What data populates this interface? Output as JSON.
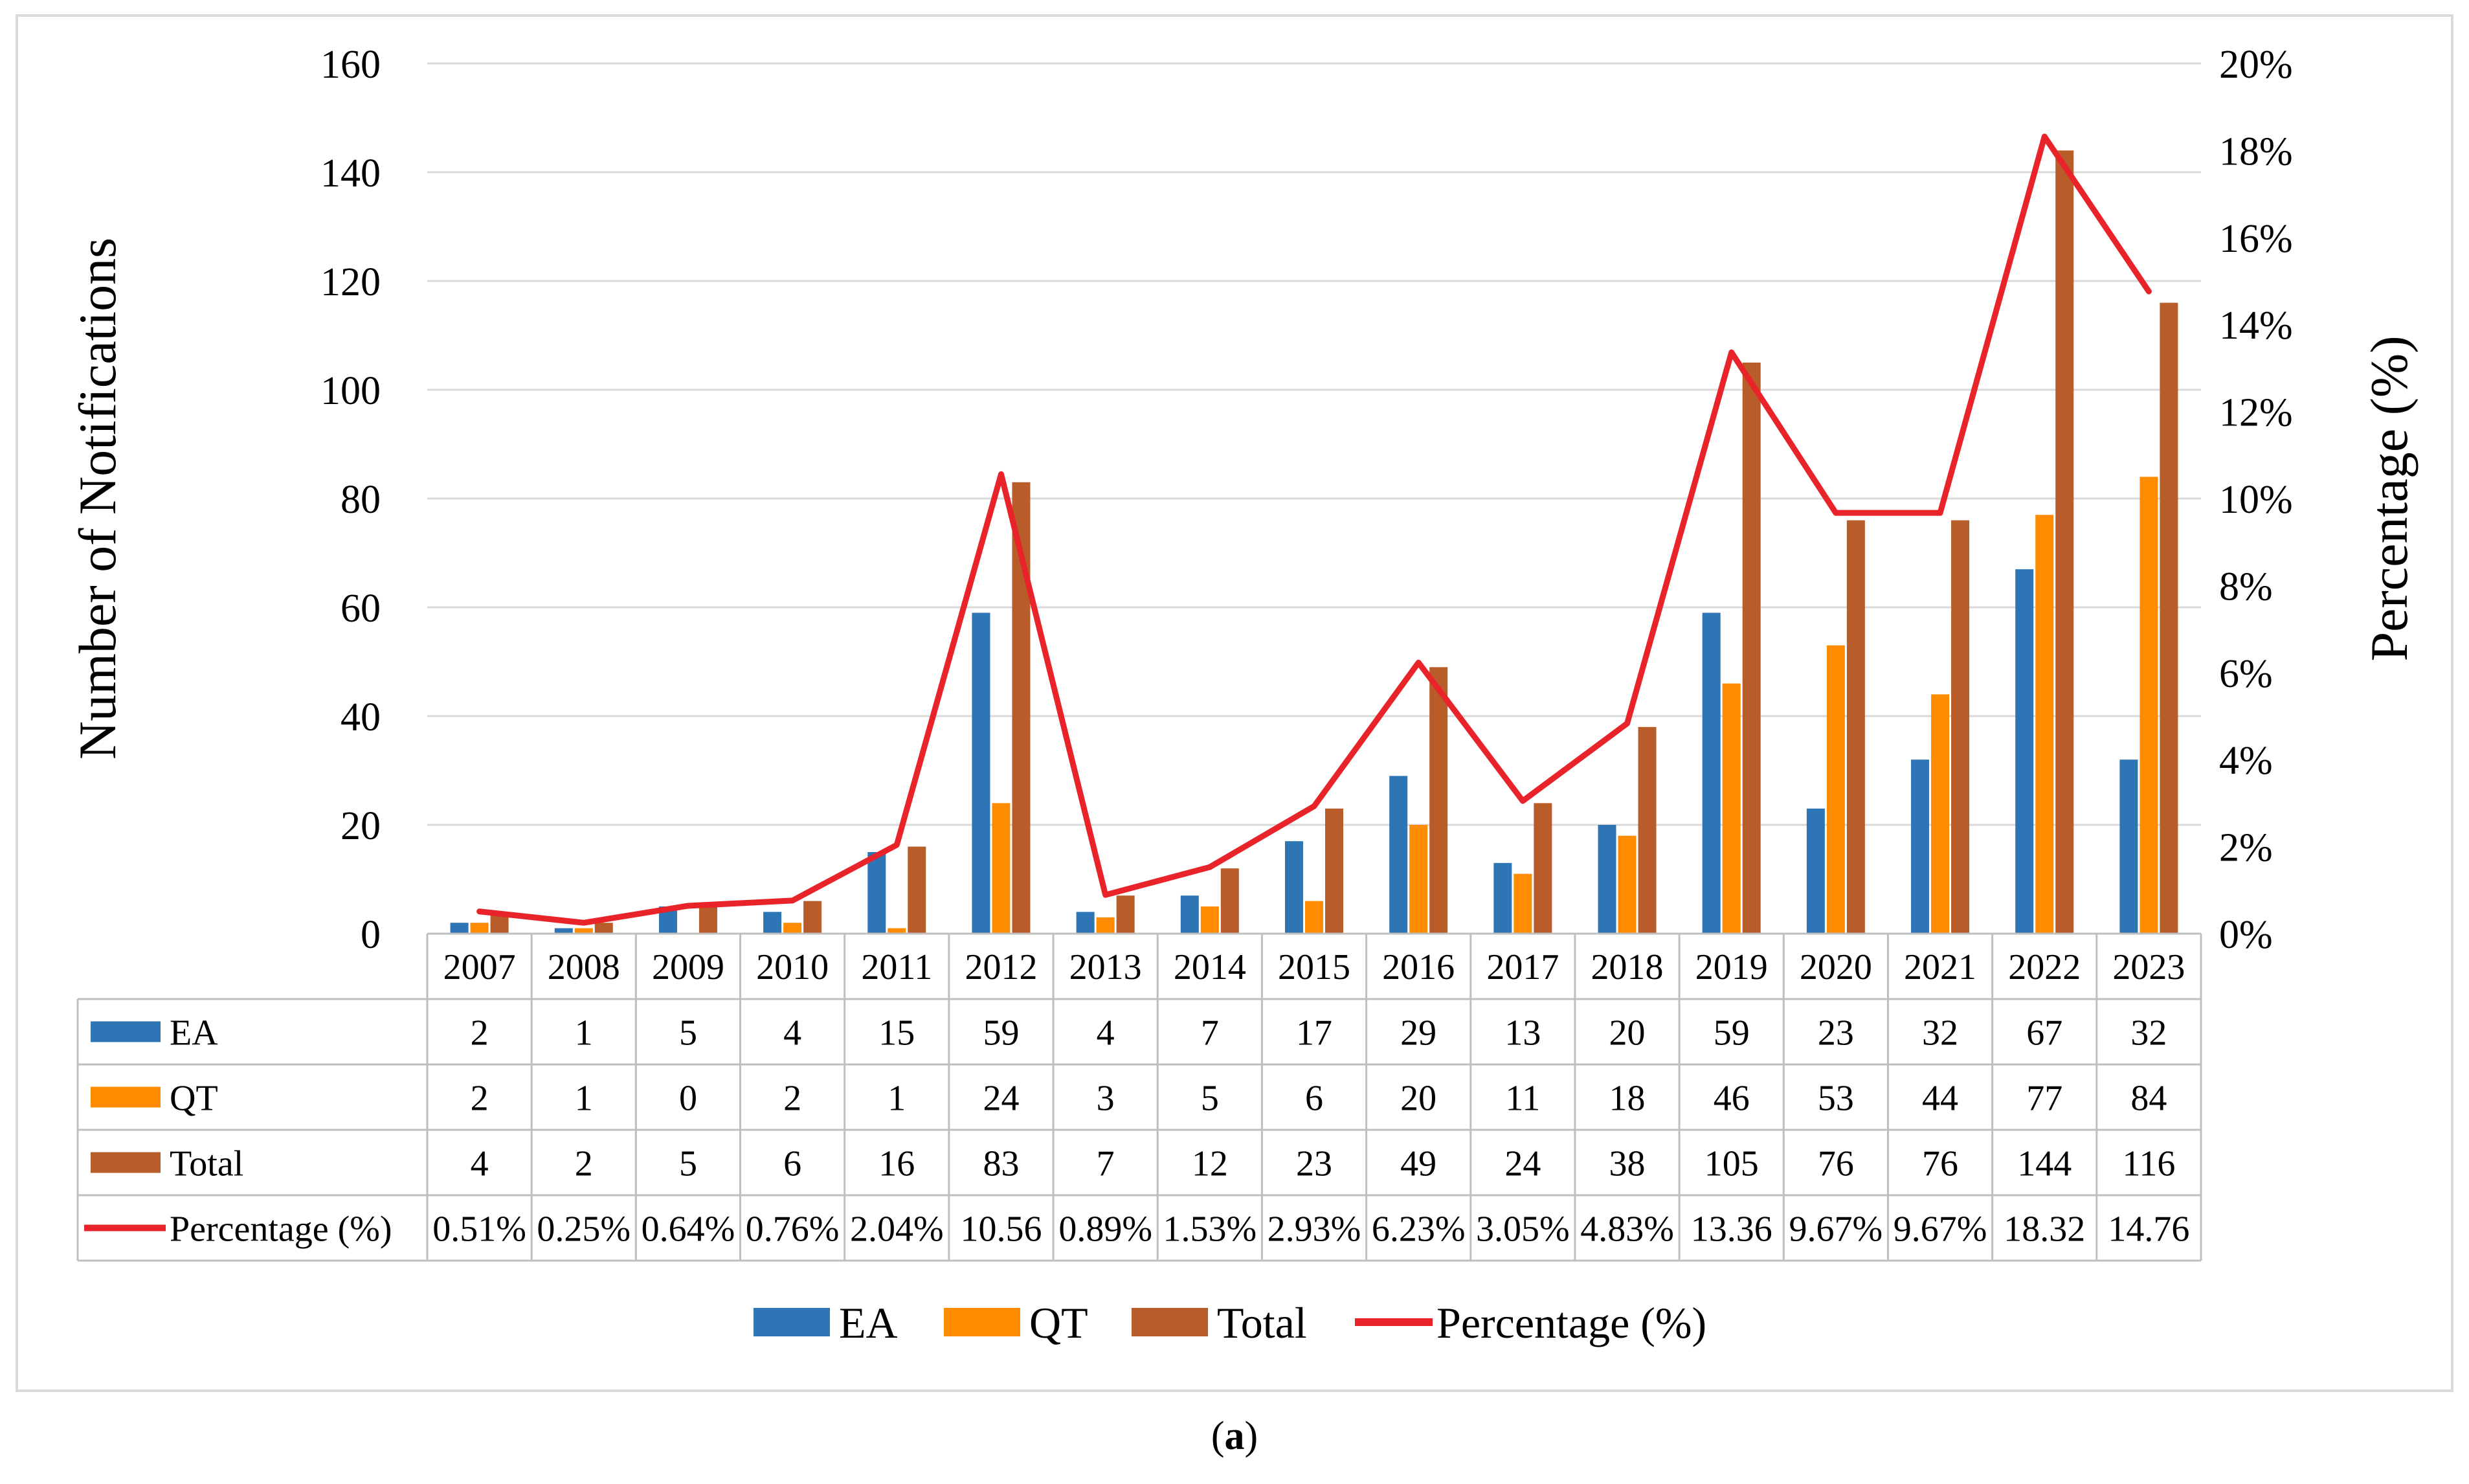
{
  "chart_data": {
    "type": "bar",
    "categories": [
      "2007",
      "2008",
      "2009",
      "2010",
      "2011",
      "2012",
      "2013",
      "2014",
      "2015",
      "2016",
      "2017",
      "2018",
      "2019",
      "2020",
      "2021",
      "2022",
      "2023"
    ],
    "series": [
      {
        "name": "EA",
        "kind": "bar",
        "axis": "left",
        "color": "#2E75B6",
        "values": [
          2,
          1,
          5,
          4,
          15,
          59,
          4,
          7,
          17,
          29,
          13,
          20,
          59,
          23,
          32,
          67,
          32
        ],
        "labels": [
          "2",
          "1",
          "5",
          "4",
          "15",
          "59",
          "4",
          "7",
          "17",
          "29",
          "13",
          "20",
          "59",
          "23",
          "32",
          "67",
          "32"
        ]
      },
      {
        "name": "QT",
        "kind": "bar",
        "axis": "left",
        "color": "#FF8C00",
        "values": [
          2,
          1,
          0,
          2,
          1,
          24,
          3,
          5,
          6,
          20,
          11,
          18,
          46,
          53,
          44,
          77,
          84
        ],
        "labels": [
          "2",
          "1",
          "0",
          "2",
          "1",
          "24",
          "3",
          "5",
          "6",
          "20",
          "11",
          "18",
          "46",
          "53",
          "44",
          "77",
          "84"
        ]
      },
      {
        "name": "Total",
        "kind": "bar",
        "axis": "left",
        "color": "#B85C2A",
        "values": [
          4,
          2,
          5,
          6,
          16,
          83,
          7,
          12,
          23,
          49,
          24,
          38,
          105,
          76,
          76,
          144,
          116
        ],
        "labels": [
          "4",
          "2",
          "5",
          "6",
          "16",
          "83",
          "7",
          "12",
          "23",
          "49",
          "24",
          "38",
          "105",
          "76",
          "76",
          "144",
          "116"
        ]
      },
      {
        "name": "Percentage (%)",
        "kind": "line",
        "axis": "right",
        "color": "#E8232A",
        "values": [
          0.51,
          0.25,
          0.64,
          0.76,
          2.04,
          10.56,
          0.89,
          1.53,
          2.93,
          6.23,
          3.05,
          4.83,
          13.36,
          9.67,
          9.67,
          18.32,
          14.76
        ],
        "labels": [
          "0.51%",
          "0.25%",
          "0.64%",
          "0.76%",
          "2.04%",
          "10.56",
          "0.89%",
          "1.53%",
          "2.93%",
          "6.23%",
          "3.05%",
          "4.83%",
          "13.36",
          "9.67%",
          "9.67%",
          "18.32",
          "14.76"
        ]
      }
    ],
    "ylabel": "Number of Notifications",
    "y2label": "Percentage (%)",
    "ylim": [
      0,
      160
    ],
    "y_ticks": [
      "0",
      "20",
      "40",
      "60",
      "80",
      "100",
      "120",
      "140",
      "160"
    ],
    "y2lim": [
      0,
      20
    ],
    "y2_ticks": [
      "0%",
      "2%",
      "4%",
      "6%",
      "8%",
      "10%",
      "12%",
      "14%",
      "16%",
      "18%",
      "20%"
    ],
    "grid": true,
    "legend_position": "bottom",
    "data_table": true
  },
  "caption": {
    "open": "(",
    "letter": "a",
    "close": ")"
  }
}
